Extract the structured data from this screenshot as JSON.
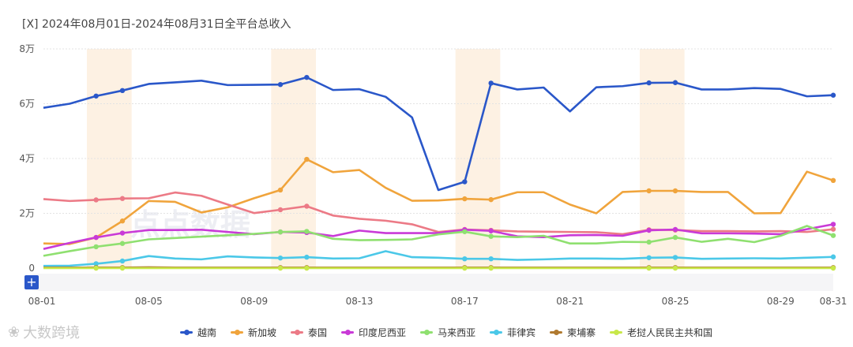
{
  "title": "[X]  2024年08月01日-2024年08月31日全平台总收入",
  "watermark_center": "点点数据",
  "watermark_bottom": "大数跨境",
  "colors": {
    "越南": "#2a57c9",
    "新加坡": "#f0a43c",
    "泰国": "#ec7a86",
    "印度尼西亚": "#c93ad7",
    "马来西亚": "#8fe070",
    "菲律宾": "#4bc8e8",
    "柬埔寨": "#b07a30",
    "老挝人民民主共和国": "#c8e84a",
    "weekend_band": "#fdf1e3"
  },
  "chart_data": {
    "type": "line",
    "title": "2024年08月01日-2024年08月31日全平台总收入",
    "x": [
      "08-01",
      "08-02",
      "08-03",
      "08-04",
      "08-05",
      "08-06",
      "08-07",
      "08-08",
      "08-09",
      "08-10",
      "08-11",
      "08-12",
      "08-13",
      "08-14",
      "08-15",
      "08-16",
      "08-17",
      "08-18",
      "08-19",
      "08-20",
      "08-21",
      "08-22",
      "08-23",
      "08-24",
      "08-25",
      "08-26",
      "08-27",
      "08-28",
      "08-29",
      "08-30",
      "08-31"
    ],
    "x_tick_labels": [
      "08-01",
      "08-05",
      "08-09",
      "08-13",
      "08-17",
      "08-21",
      "08-25",
      "08-29",
      "08-31"
    ],
    "y_ticks": [
      0,
      20000,
      40000,
      60000,
      80000
    ],
    "y_tick_labels": [
      "0",
      "2万",
      "4万",
      "6万",
      "8万"
    ],
    "ylim": [
      0,
      80000
    ],
    "highlight_bands": [
      [
        "08-03",
        "08-04"
      ],
      [
        "08-10",
        "08-11"
      ],
      [
        "08-17",
        "08-18"
      ],
      [
        "08-24",
        "08-25"
      ]
    ],
    "marker_days": [
      "08-03",
      "08-04",
      "08-10",
      "08-11",
      "08-17",
      "08-18",
      "08-24",
      "08-25",
      "08-31"
    ],
    "series": [
      {
        "name": "越南",
        "values": [
          58500,
          60000,
          62800,
          64800,
          67200,
          67800,
          68400,
          66800,
          66900,
          67000,
          69600,
          65000,
          65300,
          62500,
          55000,
          28500,
          31500,
          67500,
          65200,
          65900,
          57200,
          66000,
          66400,
          67600,
          67700,
          65200,
          65200,
          65700,
          65400,
          62700,
          63100
        ]
      },
      {
        "name": "新加坡",
        "values": [
          9000,
          8800,
          11200,
          17200,
          24500,
          24200,
          20300,
          22200,
          25500,
          28500,
          39700,
          35000,
          35800,
          29300,
          24600,
          24700,
          25300,
          25000,
          27700,
          27700,
          23200,
          20000,
          27800,
          28200,
          28200,
          27800,
          27800,
          20000,
          20100,
          35200,
          32000
        ]
      },
      {
        "name": "泰国",
        "values": [
          25200,
          24500,
          24900,
          25400,
          25500,
          27600,
          26400,
          23200,
          20100,
          21300,
          22600,
          19200,
          18000,
          17300,
          16000,
          13200,
          14100,
          13800,
          13400,
          13300,
          13200,
          13100,
          12400,
          14000,
          13900,
          13500,
          13500,
          13400,
          13500,
          13200,
          14200
        ]
      },
      {
        "name": "印度尼西亚",
        "values": [
          7000,
          9200,
          11200,
          12800,
          13900,
          13900,
          14000,
          13200,
          12400,
          13200,
          13000,
          11700,
          13700,
          12800,
          12800,
          12800,
          14000,
          13600,
          11600,
          11300,
          12000,
          12100,
          11800,
          13800,
          14100,
          12700,
          12700,
          12600,
          12400,
          14200,
          16000
        ]
      },
      {
        "name": "马来西亚",
        "values": [
          4500,
          6200,
          7800,
          9000,
          10500,
          11000,
          11500,
          12000,
          12500,
          13200,
          13400,
          10700,
          10200,
          10300,
          10500,
          12300,
          13300,
          11600,
          11300,
          11800,
          9000,
          9000,
          9600,
          9500,
          11200,
          9600,
          10700,
          9500,
          11800,
          15400,
          11900
        ]
      },
      {
        "name": "菲律宾",
        "values": [
          800,
          900,
          1600,
          2600,
          4400,
          3500,
          3200,
          4300,
          3900,
          3700,
          4000,
          3500,
          3600,
          6200,
          4000,
          3800,
          3400,
          3400,
          3000,
          3200,
          3500,
          3500,
          3400,
          3800,
          3900,
          3400,
          3500,
          3600,
          3500,
          3800,
          4100
        ]
      },
      {
        "name": "柬埔寨",
        "values": [
          200,
          200,
          200,
          200,
          300,
          200,
          200,
          200,
          200,
          200,
          200,
          200,
          200,
          200,
          200,
          200,
          200,
          200,
          200,
          200,
          200,
          200,
          200,
          200,
          200,
          200,
          200,
          200,
          200,
          200,
          200
        ]
      },
      {
        "name": "老挝人民民主共和国",
        "values": [
          0,
          0,
          0,
          0,
          0,
          0,
          0,
          0,
          0,
          0,
          0,
          0,
          0,
          0,
          0,
          0,
          0,
          0,
          0,
          0,
          0,
          0,
          0,
          0,
          0,
          0,
          0,
          0,
          0,
          0,
          0
        ]
      }
    ]
  }
}
